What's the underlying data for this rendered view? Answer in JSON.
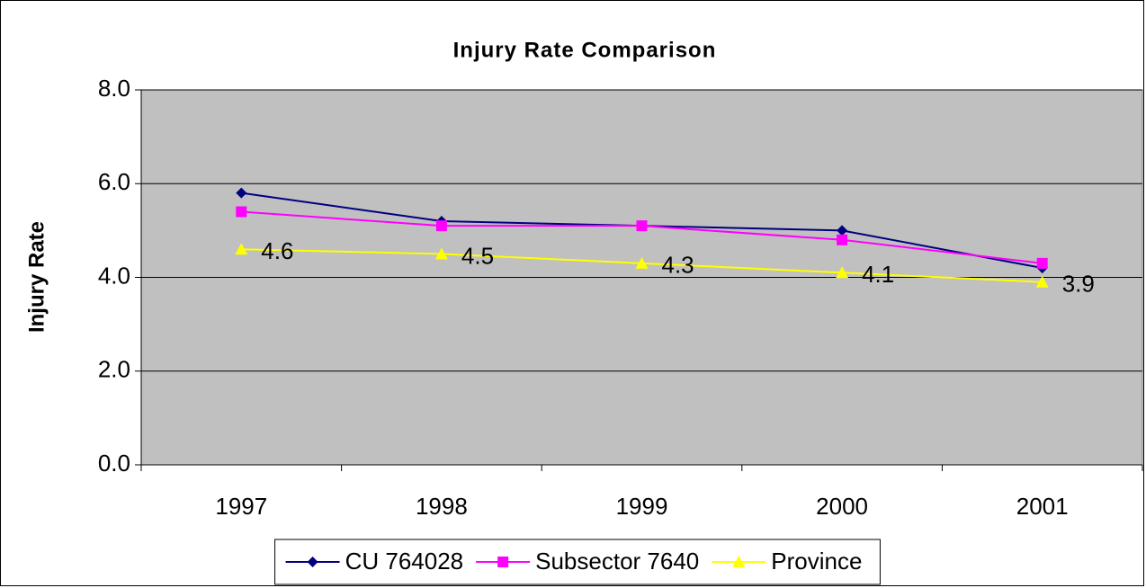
{
  "chart_data": {
    "type": "line",
    "title": "Injury Rate Comparison",
    "y_label": "Injury Rate",
    "categories": [
      "1997",
      "1998",
      "1999",
      "2000",
      "2001"
    ],
    "series": [
      {
        "name": "CU 764028",
        "color": "#000080",
        "marker": "diamond",
        "values": [
          5.8,
          5.2,
          5.1,
          5.0,
          4.2
        ]
      },
      {
        "name": "Subsector 7640",
        "color": "#ff00ff",
        "marker": "square",
        "values": [
          5.4,
          5.1,
          5.1,
          4.8,
          4.3
        ]
      },
      {
        "name": "Province",
        "color": "#ffff00",
        "marker": "triangle",
        "values": [
          4.6,
          4.5,
          4.3,
          4.1,
          3.9
        ],
        "data_labels": true
      }
    ],
    "ylim": [
      0,
      8
    ],
    "yticks": [
      {
        "value": 0,
        "label": "0.0"
      },
      {
        "value": 2,
        "label": "2.0"
      },
      {
        "value": 4,
        "label": "4.0"
      },
      {
        "value": 6,
        "label": "6.0"
      },
      {
        "value": 8,
        "label": "8.0"
      }
    ],
    "grid": true,
    "plot_background": "#c0c0c0",
    "legend": "bottom"
  }
}
